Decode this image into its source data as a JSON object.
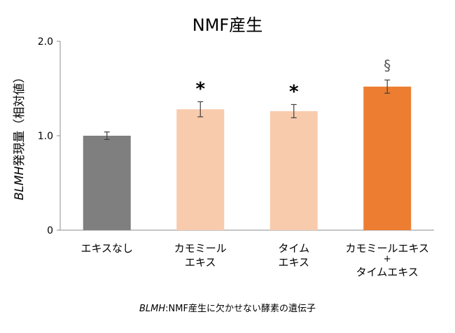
{
  "chart_data": {
    "type": "bar",
    "title": "NMF産生",
    "ylabel_italic": "BLMH",
    "ylabel_rest": "発現量（相対値）",
    "ylim": [
      0,
      2.0
    ],
    "yticks": [
      {
        "value": 0,
        "label": "0"
      },
      {
        "value": 1.0,
        "label": "1.0"
      },
      {
        "value": 2.0,
        "label": "2.0"
      }
    ],
    "categories": [
      [
        "エキスなし"
      ],
      [
        "カモミール",
        "エキス"
      ],
      [
        "タイム",
        "エキス"
      ],
      [
        "カモミールエキス",
        "+",
        "タイムエキス"
      ]
    ],
    "values": [
      1.0,
      1.28,
      1.26,
      1.52
    ],
    "errors": [
      0.04,
      0.08,
      0.07,
      0.07
    ],
    "annotations": [
      "",
      "*",
      "*",
      "§"
    ],
    "bar_colors": [
      "#7f7f7f",
      "#f8cbad",
      "#f8cbad",
      "#ed7d31"
    ]
  },
  "footnote": {
    "gene": "BLMH",
    "text": ":NMF産生に欠かせない酵素の遺伝子"
  }
}
